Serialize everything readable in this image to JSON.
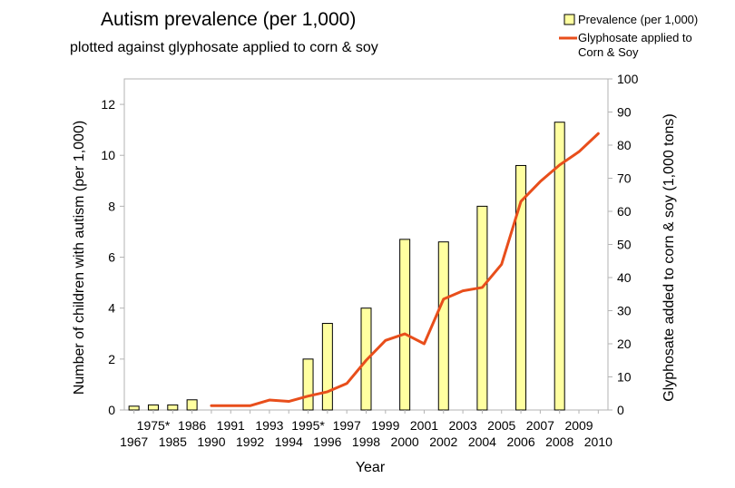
{
  "chart_data": {
    "type": "bar",
    "title": "Autism prevalence (per 1,000)",
    "subtitle": "plotted against glyphosate applied to corn & soy",
    "xlabel": "Year",
    "ylabel": "Number of children with autism (per 1,000)",
    "y2label": "Glyphosate added to corn & soy (1,000 tons)",
    "ylim": [
      0,
      13
    ],
    "yticks": [
      0,
      2,
      4,
      6,
      8,
      10,
      12
    ],
    "y2lim": [
      0,
      100
    ],
    "y2ticks": [
      0,
      10,
      20,
      30,
      40,
      50,
      60,
      70,
      80,
      90,
      100
    ],
    "grid": false,
    "legend_position": "top-right",
    "categories": [
      "1967",
      "1975*",
      "1985",
      "1986",
      "1990",
      "1991",
      "1992",
      "1993",
      "1994",
      "1995*",
      "1996",
      "1997",
      "1998",
      "1999",
      "2000",
      "2001",
      "2002",
      "2003",
      "2004",
      "2005",
      "2006",
      "2007",
      "2008",
      "2009",
      "2010"
    ],
    "categories_top_row": [
      "1975*",
      "1986",
      "1991",
      "1993",
      "1995*",
      "1997",
      "1999",
      "2001",
      "2003",
      "2005",
      "2007",
      "2009"
    ],
    "categories_bottom_row": [
      "1967",
      "1985",
      "1990",
      "1992",
      "1994",
      "1996",
      "1998",
      "2000",
      "2002",
      "2004",
      "2006",
      "2008",
      "2010"
    ],
    "series": [
      {
        "name": "Prevalence (per 1,000)",
        "type": "bar",
        "axis": "left",
        "color": "#ffffa0",
        "edge_color": "#000000",
        "values": [
          0.15,
          0.2,
          0.2,
          0.4,
          null,
          null,
          null,
          null,
          null,
          2.0,
          3.4,
          null,
          4.0,
          null,
          6.7,
          null,
          6.6,
          null,
          8.0,
          null,
          9.6,
          null,
          11.3,
          null,
          null
        ]
      },
      {
        "name": "Glyphosate applied to Corn & Soy",
        "type": "line",
        "axis": "right",
        "color": "#e84e1b",
        "values": [
          null,
          null,
          null,
          null,
          1.3,
          1.3,
          1.3,
          3,
          2.6,
          4.2,
          5.5,
          8,
          15,
          21,
          23,
          20,
          33.5,
          36,
          37,
          44,
          63,
          69,
          74,
          78,
          83.5
        ]
      }
    ]
  }
}
